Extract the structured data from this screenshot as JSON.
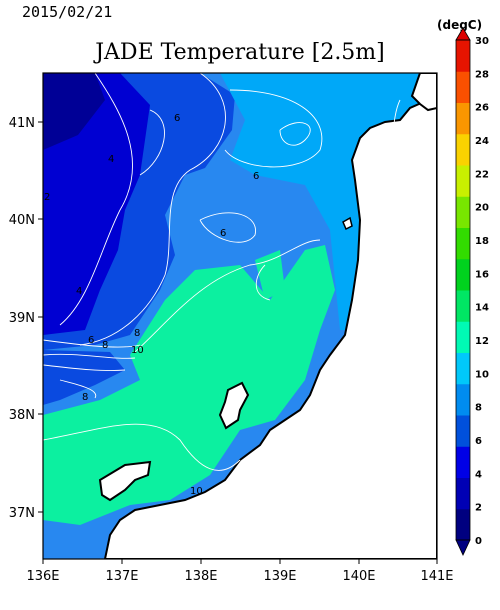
{
  "header": {
    "date": "2015/02/21",
    "title": "JADE Temperature [2.5m]"
  },
  "map": {
    "x_ticks": [
      "136E",
      "137E",
      "138E",
      "139E",
      "140E",
      "141E"
    ],
    "y_ticks": [
      "41N",
      "40N",
      "39N",
      "38N",
      "37N"
    ],
    "contour_labels": [
      "6",
      "4",
      "2",
      "6",
      "6",
      "4",
      "8",
      "6",
      "8",
      "10",
      "8",
      "10"
    ]
  },
  "colorbar": {
    "unit": "(degC)",
    "ticks": [
      "30",
      "28",
      "26",
      "24",
      "22",
      "20",
      "18",
      "16",
      "14",
      "12",
      "10",
      "8",
      "6",
      "4",
      "2",
      "0"
    ],
    "colors": [
      "#000080",
      "#0000b4",
      "#0000e6",
      "#0050dc",
      "#008cf0",
      "#00c8fa",
      "#00fab4",
      "#00e664",
      "#00d21e",
      "#32dc00",
      "#78e600",
      "#c8f000",
      "#fad200",
      "#fa9600",
      "#fa5000",
      "#e61400"
    ]
  }
}
